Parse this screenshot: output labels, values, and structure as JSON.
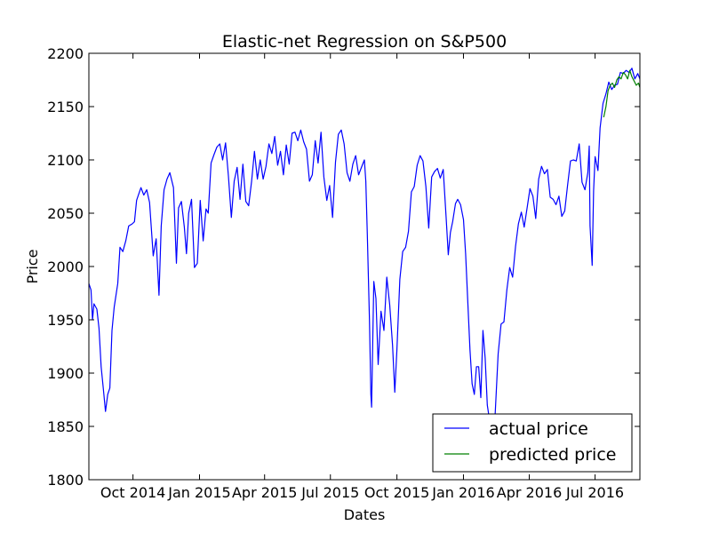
{
  "chart_data": {
    "type": "line",
    "title": "Elastic-net Regression on S&P500",
    "xlabel": "Dates",
    "ylabel": "Price",
    "xlim": [
      "2014-08-01",
      "2016-09-01"
    ],
    "ylim": [
      1800,
      2200
    ],
    "grid": false,
    "legend_position": "lower-right",
    "yticks": [
      1800,
      1850,
      1900,
      1950,
      2000,
      2050,
      2100,
      2150,
      2200
    ],
    "xticks": [
      {
        "date": "2014-10-01",
        "label": "Oct 2014"
      },
      {
        "date": "2015-01-01",
        "label": "Jan 2015"
      },
      {
        "date": "2015-04-01",
        "label": "Apr 2015"
      },
      {
        "date": "2015-07-01",
        "label": "Jul 2015"
      },
      {
        "date": "2015-10-01",
        "label": "Oct 2015"
      },
      {
        "date": "2016-01-01",
        "label": "Jan 2016"
      },
      {
        "date": "2016-04-01",
        "label": "Apr 2016"
      },
      {
        "date": "2016-07-01",
        "label": "Jul 2016"
      }
    ],
    "series": [
      {
        "name": "actual price",
        "color": "#0000ff",
        "points": [
          [
            "2014-08-01",
            1984
          ],
          [
            "2014-08-04",
            1978
          ],
          [
            "2014-08-06",
            1950
          ],
          [
            "2014-08-08",
            1965
          ],
          [
            "2014-08-12",
            1960
          ],
          [
            "2014-08-15",
            1942
          ],
          [
            "2014-08-18",
            1906
          ],
          [
            "2014-08-21",
            1885
          ],
          [
            "2014-08-24",
            1864
          ],
          [
            "2014-08-27",
            1880
          ],
          [
            "2014-08-30",
            1886
          ],
          [
            "2014-09-02",
            1940
          ],
          [
            "2014-09-05",
            1962
          ],
          [
            "2014-09-10",
            1984
          ],
          [
            "2014-09-13",
            2018
          ],
          [
            "2014-09-17",
            2014
          ],
          [
            "2014-09-21",
            2024
          ],
          [
            "2014-09-25",
            2038
          ],
          [
            "2014-09-30",
            2040
          ],
          [
            "2014-10-03",
            2042
          ],
          [
            "2014-10-06",
            2062
          ],
          [
            "2014-10-09",
            2068
          ],
          [
            "2014-10-12",
            2074
          ],
          [
            "2014-10-16",
            2067
          ],
          [
            "2014-10-20",
            2072
          ],
          [
            "2014-10-24",
            2060
          ],
          [
            "2014-10-29",
            2010
          ],
          [
            "2014-11-02",
            2026
          ],
          [
            "2014-11-06",
            1973
          ],
          [
            "2014-11-09",
            2038
          ],
          [
            "2014-11-13",
            2072
          ],
          [
            "2014-11-17",
            2082
          ],
          [
            "2014-11-21",
            2088
          ],
          [
            "2014-11-26",
            2074
          ],
          [
            "2014-11-30",
            2003
          ],
          [
            "2014-12-03",
            2055
          ],
          [
            "2014-12-07",
            2061
          ],
          [
            "2014-12-11",
            2037
          ],
          [
            "2014-12-14",
            2012
          ],
          [
            "2014-12-17",
            2050
          ],
          [
            "2014-12-21",
            2063
          ],
          [
            "2014-12-25",
            1999
          ],
          [
            "2014-12-29",
            2003
          ],
          [
            "2015-01-02",
            2062
          ],
          [
            "2015-01-06",
            2024
          ],
          [
            "2015-01-10",
            2054
          ],
          [
            "2015-01-13",
            2050
          ],
          [
            "2015-01-17",
            2097
          ],
          [
            "2015-01-21",
            2105
          ],
          [
            "2015-01-25",
            2112
          ],
          [
            "2015-01-29",
            2115
          ],
          [
            "2015-02-02",
            2100
          ],
          [
            "2015-02-06",
            2116
          ],
          [
            "2015-02-10",
            2085
          ],
          [
            "2015-02-14",
            2046
          ],
          [
            "2015-02-18",
            2080
          ],
          [
            "2015-02-22",
            2093
          ],
          [
            "2015-02-26",
            2063
          ],
          [
            "2015-03-02",
            2096
          ],
          [
            "2015-03-06",
            2061
          ],
          [
            "2015-03-10",
            2057
          ],
          [
            "2015-03-14",
            2080
          ],
          [
            "2015-03-18",
            2108
          ],
          [
            "2015-03-22",
            2082
          ],
          [
            "2015-03-26",
            2100
          ],
          [
            "2015-03-30",
            2082
          ],
          [
            "2015-04-03",
            2094
          ],
          [
            "2015-04-07",
            2115
          ],
          [
            "2015-04-11",
            2106
          ],
          [
            "2015-04-15",
            2122
          ],
          [
            "2015-04-19",
            2095
          ],
          [
            "2015-04-23",
            2108
          ],
          [
            "2015-04-27",
            2086
          ],
          [
            "2015-05-01",
            2114
          ],
          [
            "2015-05-05",
            2096
          ],
          [
            "2015-05-09",
            2125
          ],
          [
            "2015-05-13",
            2126
          ],
          [
            "2015-05-17",
            2118
          ],
          [
            "2015-05-21",
            2128
          ],
          [
            "2015-05-25",
            2117
          ],
          [
            "2015-05-29",
            2110
          ],
          [
            "2015-06-02",
            2080
          ],
          [
            "2015-06-06",
            2086
          ],
          [
            "2015-06-10",
            2118
          ],
          [
            "2015-06-14",
            2097
          ],
          [
            "2015-06-18",
            2126
          ],
          [
            "2015-06-22",
            2084
          ],
          [
            "2015-06-26",
            2062
          ],
          [
            "2015-06-30",
            2076
          ],
          [
            "2015-07-04",
            2046
          ],
          [
            "2015-07-08",
            2098
          ],
          [
            "2015-07-12",
            2124
          ],
          [
            "2015-07-16",
            2128
          ],
          [
            "2015-07-20",
            2115
          ],
          [
            "2015-07-24",
            2088
          ],
          [
            "2015-07-28",
            2080
          ],
          [
            "2015-08-01",
            2096
          ],
          [
            "2015-08-05",
            2104
          ],
          [
            "2015-08-09",
            2086
          ],
          [
            "2015-08-13",
            2093
          ],
          [
            "2015-08-17",
            2100
          ],
          [
            "2015-08-19",
            2080
          ],
          [
            "2015-08-21",
            2030
          ],
          [
            "2015-08-24",
            1950
          ],
          [
            "2015-08-26",
            1880
          ],
          [
            "2015-08-27",
            1868
          ],
          [
            "2015-08-30",
            1986
          ],
          [
            "2015-09-02",
            1970
          ],
          [
            "2015-09-05",
            1908
          ],
          [
            "2015-09-09",
            1958
          ],
          [
            "2015-09-13",
            1940
          ],
          [
            "2015-09-17",
            1990
          ],
          [
            "2015-09-21",
            1964
          ],
          [
            "2015-09-25",
            1926
          ],
          [
            "2015-09-28",
            1882
          ],
          [
            "2015-10-01",
            1922
          ],
          [
            "2015-10-05",
            1988
          ],
          [
            "2015-10-09",
            2014
          ],
          [
            "2015-10-13",
            2018
          ],
          [
            "2015-10-17",
            2033
          ],
          [
            "2015-10-21",
            2070
          ],
          [
            "2015-10-25",
            2075
          ],
          [
            "2015-10-29",
            2095
          ],
          [
            "2015-11-02",
            2104
          ],
          [
            "2015-11-06",
            2099
          ],
          [
            "2015-11-10",
            2075
          ],
          [
            "2015-11-14",
            2036
          ],
          [
            "2015-11-18",
            2084
          ],
          [
            "2015-11-22",
            2089
          ],
          [
            "2015-11-26",
            2092
          ],
          [
            "2015-11-30",
            2083
          ],
          [
            "2015-12-04",
            2091
          ],
          [
            "2015-12-08",
            2047
          ],
          [
            "2015-12-11",
            2011
          ],
          [
            "2015-12-14",
            2032
          ],
          [
            "2015-12-17",
            2042
          ],
          [
            "2015-12-21",
            2059
          ],
          [
            "2015-12-24",
            2063
          ],
          [
            "2015-12-28",
            2058
          ],
          [
            "2016-01-01",
            2044
          ],
          [
            "2016-01-04",
            2012
          ],
          [
            "2016-01-07",
            1966
          ],
          [
            "2016-01-10",
            1922
          ],
          [
            "2016-01-13",
            1890
          ],
          [
            "2016-01-16",
            1880
          ],
          [
            "2016-01-19",
            1906
          ],
          [
            "2016-01-22",
            1906
          ],
          [
            "2016-01-25",
            1877
          ],
          [
            "2016-01-28",
            1940
          ],
          [
            "2016-01-31",
            1914
          ],
          [
            "2016-02-03",
            1870
          ],
          [
            "2016-02-06",
            1856
          ],
          [
            "2016-02-09",
            1852
          ],
          [
            "2016-02-11",
            1829
          ],
          [
            "2016-02-14",
            1864
          ],
          [
            "2016-02-18",
            1918
          ],
          [
            "2016-02-22",
            1946
          ],
          [
            "2016-02-26",
            1948
          ],
          [
            "2016-03-01",
            1978
          ],
          [
            "2016-03-05",
            1999
          ],
          [
            "2016-03-09",
            1990
          ],
          [
            "2016-03-13",
            2019
          ],
          [
            "2016-03-17",
            2040
          ],
          [
            "2016-03-21",
            2051
          ],
          [
            "2016-03-25",
            2037
          ],
          [
            "2016-03-29",
            2055
          ],
          [
            "2016-04-02",
            2073
          ],
          [
            "2016-04-06",
            2066
          ],
          [
            "2016-04-10",
            2045
          ],
          [
            "2016-04-14",
            2082
          ],
          [
            "2016-04-18",
            2094
          ],
          [
            "2016-04-22",
            2087
          ],
          [
            "2016-04-26",
            2091
          ],
          [
            "2016-04-30",
            2065
          ],
          [
            "2016-05-04",
            2063
          ],
          [
            "2016-05-08",
            2058
          ],
          [
            "2016-05-12",
            2066
          ],
          [
            "2016-05-16",
            2047
          ],
          [
            "2016-05-20",
            2052
          ],
          [
            "2016-05-24",
            2076
          ],
          [
            "2016-05-28",
            2099
          ],
          [
            "2016-06-01",
            2100
          ],
          [
            "2016-06-05",
            2099
          ],
          [
            "2016-06-09",
            2115
          ],
          [
            "2016-06-13",
            2079
          ],
          [
            "2016-06-17",
            2072
          ],
          [
            "2016-06-21",
            2088
          ],
          [
            "2016-06-23",
            2113
          ],
          [
            "2016-06-24",
            2038
          ],
          [
            "2016-06-27",
            2001
          ],
          [
            "2016-06-29",
            2071
          ],
          [
            "2016-07-01",
            2103
          ],
          [
            "2016-07-05",
            2090
          ],
          [
            "2016-07-08",
            2130
          ],
          [
            "2016-07-12",
            2153
          ],
          [
            "2016-07-16",
            2162
          ],
          [
            "2016-07-20",
            2173
          ],
          [
            "2016-07-24",
            2166
          ],
          [
            "2016-07-28",
            2170
          ],
          [
            "2016-08-01",
            2171
          ],
          [
            "2016-08-05",
            2182
          ],
          [
            "2016-08-09",
            2181
          ],
          [
            "2016-08-13",
            2184
          ],
          [
            "2016-08-17",
            2182
          ],
          [
            "2016-08-21",
            2186
          ],
          [
            "2016-08-25",
            2176
          ],
          [
            "2016-08-29",
            2181
          ],
          [
            "2016-09-01",
            2176
          ]
        ]
      },
      {
        "name": "predicted price",
        "color": "#008000",
        "points": [
          [
            "2016-07-13",
            2140
          ],
          [
            "2016-07-16",
            2150
          ],
          [
            "2016-07-19",
            2165
          ],
          [
            "2016-07-22",
            2170
          ],
          [
            "2016-07-25",
            2172
          ],
          [
            "2016-07-28",
            2168
          ],
          [
            "2016-07-31",
            2175
          ],
          [
            "2016-08-03",
            2178
          ],
          [
            "2016-08-06",
            2176
          ],
          [
            "2016-08-09",
            2182
          ],
          [
            "2016-08-12",
            2180
          ],
          [
            "2016-08-15",
            2176
          ],
          [
            "2016-08-18",
            2184
          ],
          [
            "2016-08-21",
            2178
          ],
          [
            "2016-08-24",
            2174
          ],
          [
            "2016-08-27",
            2170
          ],
          [
            "2016-08-30",
            2172
          ],
          [
            "2016-09-01",
            2168
          ]
        ]
      }
    ]
  }
}
